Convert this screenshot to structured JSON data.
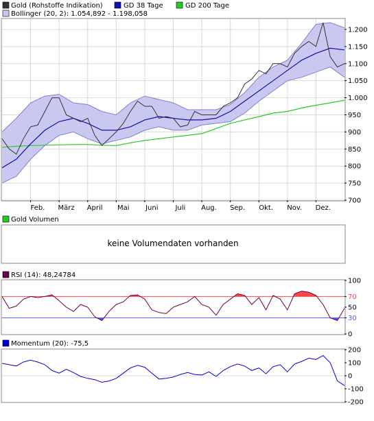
{
  "price_panel": {
    "legend": {
      "gold": "Gold (Rohstoffe Indikation)",
      "gd38": "GD 38 Tage",
      "gd200": "GD 200 Tage",
      "bollinger": "Bollinger (20, 2): 1.054,892 - 1.198,058"
    },
    "colors": {
      "price": "#333333",
      "gd38": "#1010aa",
      "gd200": "#22cc22",
      "band_fill": "#c8c8f0",
      "band_line": "#8080d0"
    }
  },
  "volume_panel": {
    "legend": "Gold Volumen",
    "message": "keine Volumendaten vorhanden",
    "color": "#22cc22"
  },
  "rsi_panel": {
    "legend": "RSI (14): 48,24784",
    "color": "#660044",
    "upper_level_color": "#ff4444",
    "lower_level_color": "#5555ff"
  },
  "momentum_panel": {
    "legend": "Momentum (20): -75,5",
    "color": "#0000dd"
  },
  "chart_data": [
    {
      "type": "line",
      "x_labels": [
        "Feb.",
        "März",
        "April",
        "Mai",
        "Juni",
        "Juli",
        "Aug.",
        "Sep.",
        "Okt.",
        "Nov.",
        "Dez."
      ],
      "x_label_positions": [
        1.25,
        2.25,
        3.25,
        4.25,
        5.25,
        6.25,
        7.25,
        8.25,
        9.25,
        10.25,
        11.25
      ],
      "xlim": [
        0,
        12
      ],
      "ylim": [
        700,
        1230
      ],
      "y_ticks": [
        700,
        750,
        800,
        850,
        900,
        950,
        1000,
        1050,
        1100,
        1150,
        1200
      ],
      "y_tick_labels": [
        "700",
        "750",
        "800",
        "850",
        "900",
        "950",
        "1.000",
        "1.050",
        "1.100",
        "1.150",
        "1.200"
      ],
      "series": [
        {
          "name": "Gold (Rohstoffe Indikation)",
          "x": [
            0,
            0.25,
            0.5,
            0.75,
            1.0,
            1.25,
            1.5,
            1.75,
            2.0,
            2.25,
            2.5,
            2.75,
            3.0,
            3.25,
            3.5,
            3.75,
            4.0,
            4.25,
            4.5,
            4.75,
            5.0,
            5.25,
            5.5,
            5.75,
            6.0,
            6.25,
            6.5,
            6.75,
            7.0,
            7.25,
            7.5,
            7.75,
            8.0,
            8.25,
            8.5,
            8.75,
            9.0,
            9.25,
            9.5,
            9.75,
            10.0,
            10.25,
            10.5,
            10.75,
            11.0,
            11.25,
            11.5,
            11.75,
            12.0
          ],
          "values": [
            880,
            850,
            835,
            880,
            915,
            920,
            960,
            1000,
            1000,
            950,
            940,
            930,
            940,
            890,
            860,
            880,
            900,
            925,
            960,
            990,
            975,
            975,
            940,
            945,
            940,
            915,
            920,
            960,
            950,
            950,
            950,
            975,
            985,
            1000,
            1040,
            1055,
            1080,
            1070,
            1100,
            1100,
            1090,
            1130,
            1150,
            1165,
            1150,
            1220,
            1120,
            1090,
            1100
          ]
        },
        {
          "name": "GD 38 Tage",
          "x": [
            0,
            0.5,
            1.0,
            1.5,
            2.0,
            2.5,
            3.0,
            3.5,
            4.0,
            4.5,
            5.0,
            5.5,
            6.0,
            6.5,
            7.0,
            7.5,
            8.0,
            8.5,
            9.0,
            9.5,
            10.0,
            10.5,
            11.0,
            11.5,
            12.0
          ],
          "values": [
            795,
            820,
            865,
            905,
            930,
            940,
            925,
            905,
            905,
            915,
            935,
            945,
            940,
            935,
            935,
            940,
            960,
            990,
            1020,
            1050,
            1080,
            1110,
            1130,
            1145,
            1140
          ]
        },
        {
          "name": "GD 200 Tage",
          "x": [
            0,
            0.5,
            1.0,
            1.5,
            2.0,
            2.5,
            3.0,
            3.5,
            4.0,
            4.5,
            5.0,
            5.5,
            6.0,
            6.5,
            7.0,
            7.5,
            8.0,
            8.5,
            9.0,
            9.5,
            10.0,
            10.5,
            11.0,
            11.5,
            12.0
          ],
          "values": [
            855,
            858,
            860,
            861,
            862,
            863,
            863,
            861,
            860,
            868,
            875,
            880,
            885,
            890,
            895,
            910,
            925,
            935,
            945,
            955,
            960,
            970,
            978,
            985,
            993
          ]
        },
        {
          "name": "Bollinger (20, 2)",
          "x": [
            0,
            0.5,
            1.0,
            1.5,
            2.0,
            2.5,
            3.0,
            3.5,
            4.0,
            4.5,
            5.0,
            5.5,
            6.0,
            6.5,
            7.0,
            7.5,
            8.0,
            8.5,
            9.0,
            9.5,
            10.0,
            10.5,
            11.0,
            11.5,
            12.0
          ],
          "upper": [
            900,
            940,
            985,
            1005,
            1010,
            985,
            980,
            960,
            950,
            985,
            1005,
            995,
            985,
            965,
            965,
            965,
            980,
            1015,
            1060,
            1090,
            1110,
            1160,
            1215,
            1220,
            1205
          ],
          "lower": [
            750,
            770,
            820,
            860,
            890,
            900,
            880,
            865,
            875,
            885,
            905,
            915,
            905,
            905,
            920,
            925,
            930,
            955,
            990,
            1020,
            1050,
            1060,
            1075,
            1090,
            1060
          ]
        }
      ]
    },
    {
      "type": "line",
      "xlim": [
        0,
        12
      ],
      "ylim": [
        0,
        100
      ],
      "y_ticks": [
        0,
        30,
        50,
        70,
        100
      ],
      "levels": {
        "upper": 70,
        "lower": 30
      },
      "series": [
        {
          "name": "RSI (14)",
          "x": [
            0,
            0.25,
            0.5,
            0.75,
            1.0,
            1.25,
            1.5,
            1.75,
            2.0,
            2.25,
            2.5,
            2.75,
            3.0,
            3.25,
            3.5,
            3.75,
            4.0,
            4.25,
            4.5,
            4.75,
            5.0,
            5.25,
            5.5,
            5.75,
            6.0,
            6.25,
            6.5,
            6.75,
            7.0,
            7.25,
            7.5,
            7.75,
            8.0,
            8.25,
            8.5,
            8.75,
            9.0,
            9.25,
            9.5,
            9.75,
            10.0,
            10.25,
            10.5,
            10.75,
            11.0,
            11.25,
            11.5,
            11.75,
            12.0
          ],
          "values": [
            70,
            48,
            52,
            65,
            70,
            68,
            70,
            73,
            62,
            50,
            42,
            55,
            50,
            32,
            25,
            42,
            55,
            60,
            72,
            73,
            65,
            45,
            40,
            38,
            50,
            55,
            60,
            70,
            55,
            50,
            35,
            55,
            65,
            75,
            72,
            55,
            68,
            45,
            72,
            65,
            45,
            75,
            80,
            78,
            72,
            55,
            30,
            25,
            48
          ]
        }
      ]
    },
    {
      "type": "line",
      "xlim": [
        0,
        12
      ],
      "ylim": [
        -200,
        200
      ],
      "y_ticks": [
        -200,
        -100,
        0,
        100,
        200
      ],
      "series": [
        {
          "name": "Momentum (20)",
          "x": [
            0,
            0.25,
            0.5,
            0.75,
            1.0,
            1.25,
            1.5,
            1.75,
            2.0,
            2.25,
            2.5,
            2.75,
            3.0,
            3.25,
            3.5,
            3.75,
            4.0,
            4.25,
            4.5,
            4.75,
            5.0,
            5.25,
            5.5,
            5.75,
            6.0,
            6.25,
            6.5,
            6.75,
            7.0,
            7.25,
            7.5,
            7.75,
            8.0,
            8.25,
            8.5,
            8.75,
            9.0,
            9.25,
            9.5,
            9.75,
            10.0,
            10.25,
            10.5,
            10.75,
            11.0,
            11.25,
            11.5,
            11.75,
            12.0
          ],
          "values": [
            95,
            85,
            75,
            105,
            120,
            105,
            85,
            40,
            20,
            50,
            25,
            -5,
            -20,
            -30,
            -50,
            -40,
            -20,
            20,
            60,
            80,
            65,
            20,
            -25,
            -20,
            -10,
            10,
            25,
            10,
            5,
            30,
            -5,
            40,
            70,
            90,
            75,
            40,
            60,
            15,
            70,
            85,
            30,
            90,
            110,
            135,
            125,
            155,
            100,
            -40,
            -75
          ]
        }
      ]
    }
  ]
}
